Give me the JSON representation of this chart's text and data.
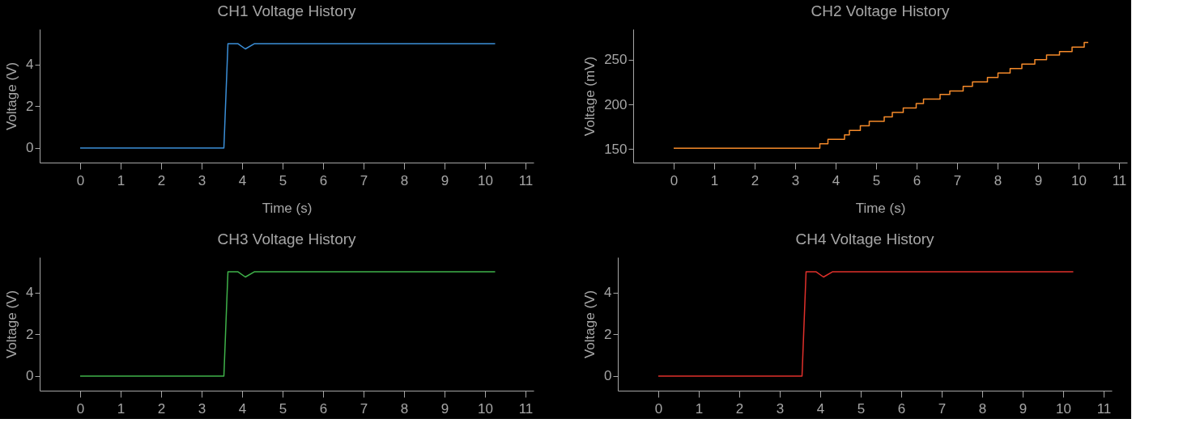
{
  "chart_data": [
    {
      "type": "line",
      "title": "CH1 Voltage History",
      "xlabel": "Time (s)",
      "ylabel": "Voltage (V)",
      "x": [
        0,
        3.55,
        3.65,
        3.9,
        4.08,
        4.3,
        10.25
      ],
      "series": [
        {
          "color": "#3b8fd8",
          "values": [
            0,
            0,
            5.0,
            5.0,
            4.75,
            5.0,
            5.0
          ]
        }
      ],
      "xlim": [
        -1.0,
        11.2
      ],
      "xticks": [
        0,
        1,
        2,
        3,
        4,
        5,
        6,
        7,
        8,
        9,
        10,
        11
      ],
      "ylim": [
        -0.7,
        5.7
      ],
      "yticks": [
        0,
        2,
        4
      ],
      "grid": false
    },
    {
      "type": "step",
      "title": "CH2 Voltage History",
      "xlabel": "Time (s)",
      "ylabel": "Voltage (mV)",
      "x": [
        0,
        3.61,
        3.81,
        4.22,
        4.34,
        4.61,
        4.83,
        5.2,
        5.4,
        5.67,
        5.99,
        6.17,
        6.58,
        6.82,
        7.15,
        7.38,
        7.75,
        8.01,
        8.31,
        8.6,
        8.92,
        9.21,
        9.53,
        9.84,
        10.14,
        10.24
      ],
      "series": [
        {
          "color": "#f58a2a",
          "values": [
            151,
            156,
            161,
            166,
            171,
            176,
            181,
            186,
            191,
            196,
            201,
            206,
            211,
            215,
            220,
            225,
            230,
            235,
            240,
            245,
            250,
            255,
            259,
            264,
            269,
            269
          ]
        }
      ],
      "xlim": [
        -1.0,
        11.2
      ],
      "xticks": [
        0,
        1,
        2,
        3,
        4,
        5,
        6,
        7,
        8,
        9,
        10,
        11
      ],
      "ylim": [
        135,
        284
      ],
      "yticks": [
        150,
        200,
        250
      ],
      "grid": false
    },
    {
      "type": "line",
      "title": "CH3 Voltage History",
      "ylabel": "Voltage (V)",
      "x": [
        0,
        3.55,
        3.65,
        3.9,
        4.08,
        4.3,
        10.25
      ],
      "series": [
        {
          "color": "#3fb24a",
          "values": [
            0,
            0,
            5.0,
            5.0,
            4.75,
            5.0,
            5.0
          ]
        }
      ],
      "xlim": [
        -1.0,
        11.2
      ],
      "xticks": [
        0,
        1,
        2,
        3,
        4,
        5,
        6,
        7,
        8,
        9,
        10,
        11
      ],
      "ylim": [
        -0.7,
        5.7
      ],
      "yticks": [
        0,
        2,
        4
      ],
      "grid": false
    },
    {
      "type": "line",
      "title": "CH4 Voltage History",
      "ylabel": "Voltage (V)",
      "x": [
        0,
        3.55,
        3.65,
        3.9,
        4.08,
        4.3,
        10.25
      ],
      "series": [
        {
          "color": "#e0302b",
          "values": [
            0,
            0,
            5.0,
            5.0,
            4.75,
            5.0,
            5.0
          ]
        }
      ],
      "xlim": [
        -1.0,
        11.2
      ],
      "xticks": [
        0,
        1,
        2,
        3,
        4,
        5,
        6,
        7,
        8,
        9,
        10,
        11
      ],
      "ylim": [
        -0.7,
        5.7
      ],
      "yticks": [
        0,
        2,
        4
      ],
      "grid": false
    }
  ]
}
